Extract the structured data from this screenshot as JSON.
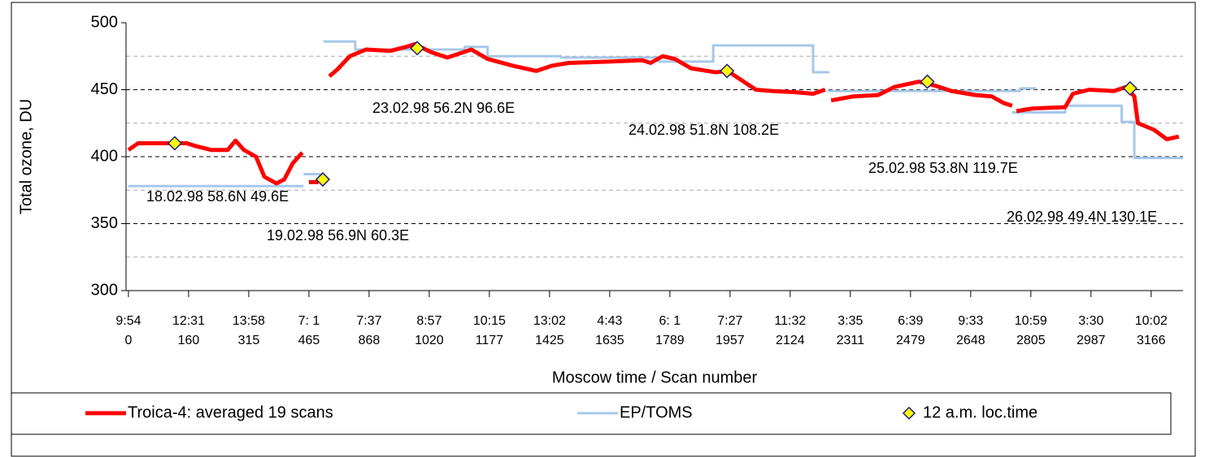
{
  "chart_data": {
    "type": "line",
    "y_label": "Total ozone, DU",
    "x_label": "Moscow time / Scan number",
    "ylim": [
      300,
      500
    ],
    "yticks": [
      300,
      350,
      400,
      450,
      500
    ],
    "minor_yticks": [
      325,
      375,
      425,
      475
    ],
    "grid": true,
    "xlim": [
      -0.04,
      17.53
    ],
    "xticks": [
      {
        "value": 0,
        "label": "9:54"
      },
      {
        "value": 1,
        "label": "12:31"
      },
      {
        "value": 2,
        "label": "13:58"
      },
      {
        "value": 3,
        "label": "7: 1"
      },
      {
        "value": 4,
        "label": "7:37"
      },
      {
        "value": 5,
        "label": "8:57"
      },
      {
        "value": 6,
        "label": "10:15"
      },
      {
        "value": 7,
        "label": "13:02"
      },
      {
        "value": 8,
        "label": "4:43"
      },
      {
        "value": 9,
        "label": "6: 1"
      },
      {
        "value": 10,
        "label": "7:27"
      },
      {
        "value": 11,
        "label": "11:32"
      },
      {
        "value": 12,
        "label": "3:35"
      },
      {
        "value": 13,
        "label": "6:39"
      },
      {
        "value": 14,
        "label": "9:33"
      },
      {
        "value": 15,
        "label": "10:59"
      },
      {
        "value": 16,
        "label": "3:30"
      },
      {
        "value": 17,
        "label": "10:02"
      }
    ],
    "x_sublabels": [
      "0",
      "160",
      "315",
      "465",
      "868",
      "1020",
      "1177",
      "1425",
      "1635",
      "1789",
      "1957",
      "2124",
      "2311",
      "2479",
      "2648",
      "2805",
      "2987",
      "3166"
    ],
    "legend": "bottom",
    "series": [
      {
        "name": "Troica-4: averaged 19 scans",
        "color": "#ff0000",
        "marker": "line",
        "x": [
          0,
          0.16,
          0.97,
          1.11,
          1.38,
          1.65,
          1.78,
          1.92,
          2.12,
          2.26,
          2.46,
          2.59,
          2.73,
          2.89,
          null,
          3.0,
          3.16,
          null,
          3.34,
          3.47,
          3.68,
          3.95,
          4.35,
          4.62,
          4.76,
          5.03,
          5.3,
          5.57,
          5.7,
          5.97,
          6.38,
          6.78,
          7.05,
          7.32,
          8.0,
          8.54,
          8.68,
          8.88,
          9.08,
          9.35,
          9.76,
          9.96,
          10.16,
          10.43,
          10.7,
          11.11,
          11.38,
          11.58,
          null,
          11.68,
          12.05,
          12.46,
          12.73,
          13.14,
          13.41,
          13.68,
          14.08,
          14.35,
          14.55,
          14.69,
          null,
          14.76,
          15.03,
          15.57,
          15.7,
          15.97,
          16.38,
          16.58,
          16.72,
          16.78,
          17.05,
          17.26,
          17.46
        ],
        "values": [
          405,
          410,
          410,
          408,
          405,
          405,
          412,
          405,
          400,
          385,
          380,
          383,
          395,
          403,
          null,
          381,
          381,
          null,
          460,
          465,
          475,
          480,
          479,
          482,
          484,
          478,
          474,
          478,
          480,
          473,
          468,
          464,
          468,
          470,
          471,
          472,
          470,
          475,
          473,
          466,
          463,
          464,
          458,
          450,
          449,
          448,
          447,
          450,
          null,
          442,
          445,
          446,
          452,
          456,
          453,
          449,
          446,
          445,
          440,
          438,
          null,
          434,
          436,
          437,
          447,
          450,
          449,
          452,
          445,
          425,
          420,
          413,
          415
        ]
      },
      {
        "name": "EP/TOMS",
        "color": "#a6c8e8",
        "marker": "line",
        "x": [
          0,
          2.91,
          null,
          2.91,
          3.2,
          null,
          3.24,
          3.77,
          3.77,
          5.59,
          5.59,
          5.97,
          5.97,
          7.19,
          7.19,
          8.81,
          8.81,
          9.72,
          9.72,
          11.38,
          11.38,
          11.65,
          null,
          11.62,
          14.82,
          14.82,
          15.09,
          null,
          14.69,
          15.57,
          15.57,
          16.51,
          16.51,
          16.72,
          16.72,
          17.53
        ],
        "values": [
          378,
          378,
          null,
          387,
          387,
          null,
          486,
          486,
          480,
          480,
          482,
          482,
          475,
          475,
          474,
          474,
          471,
          471,
          483,
          483,
          463,
          463,
          null,
          449,
          449,
          451,
          451,
          null,
          433,
          433,
          438,
          438,
          426,
          426,
          399,
          399
        ]
      },
      {
        "name": "12 a.m. loc.time",
        "color": "#ffff00",
        "marker": "diamond",
        "x": [
          0.77,
          3.23,
          4.8,
          9.95,
          13.28,
          16.65
        ],
        "values": [
          410,
          383,
          481,
          464,
          456,
          451
        ]
      }
    ],
    "annotations": [
      {
        "text": "18.02.98 58.6N 49.6E"
      },
      {
        "text": "19.02.98 56.9N 60.3E"
      },
      {
        "text": "23.02.98 56.2N 96.6E"
      },
      {
        "text": "24.02.98 51.8N 108.2E"
      },
      {
        "text": "25.02.98 53.8N 119.7E"
      },
      {
        "text": "26.02.98 49.4N 130.1E"
      }
    ]
  }
}
